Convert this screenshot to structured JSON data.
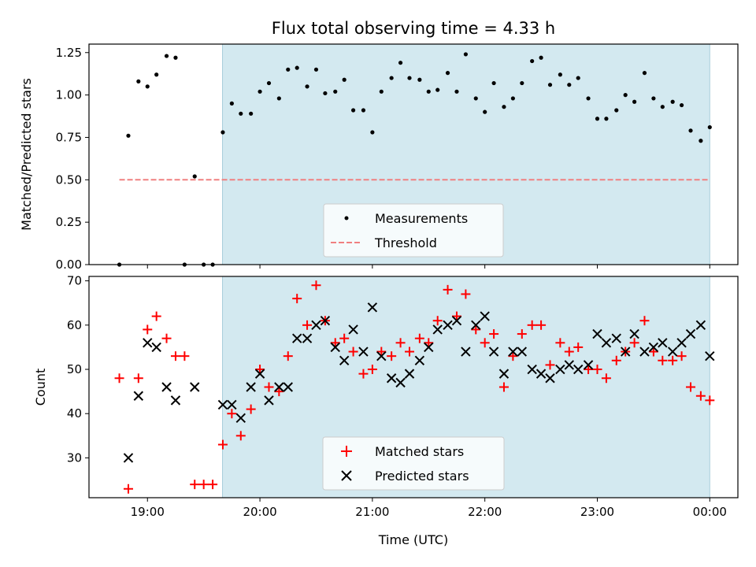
{
  "chart_data": {
    "type": "scatter",
    "title": "Flux total observing time = 4.33 h",
    "xlabel": "Time (UTC)",
    "x_ticks": [
      19.0,
      20.0,
      21.0,
      22.0,
      23.0,
      24.0
    ],
    "x_tick_labels": [
      "19:00",
      "20:00",
      "21:00",
      "22:00",
      "23:00",
      "00:00"
    ],
    "xlim": [
      18.48,
      24.25
    ],
    "observing_window": [
      19.667,
      24.0
    ],
    "colors": {
      "window": "#d3e9f0",
      "measurement": "#000000",
      "threshold": "#f08080",
      "matched": "#ff0000",
      "predicted": "#000000"
    },
    "panels": [
      {
        "ylabel": "Matched/Predicted stars",
        "ylim": [
          0,
          1.3
        ],
        "y_ticks": [
          0,
          0.25,
          0.5,
          0.75,
          1.0,
          1.25
        ],
        "y_tick_labels": [
          "0.00",
          "0.25",
          "0.50",
          "0.75",
          "1.00",
          "1.25"
        ],
        "legend_position": "lower center",
        "threshold": {
          "name": "Threshold",
          "value": 0.5,
          "x_range": [
            18.75,
            24.0
          ]
        },
        "series": [
          {
            "name": "Measurements",
            "marker": "dot",
            "x": [
              18.75,
              18.83,
              18.92,
              19.0,
              19.08,
              19.17,
              19.25,
              19.33,
              19.42,
              19.5,
              19.58,
              19.67,
              19.75,
              19.83,
              19.92,
              20.0,
              20.08,
              20.17,
              20.25,
              20.33,
              20.42,
              20.5,
              20.58,
              20.67,
              20.75,
              20.83,
              20.92,
              21.0,
              21.08,
              21.17,
              21.25,
              21.33,
              21.42,
              21.5,
              21.58,
              21.67,
              21.75,
              21.83,
              21.92,
              22.0,
              22.08,
              22.17,
              22.25,
              22.33,
              22.42,
              22.5,
              22.58,
              22.67,
              22.75,
              22.83,
              22.92,
              23.0,
              23.08,
              23.17,
              23.25,
              23.33,
              23.42,
              23.5,
              23.58,
              23.67,
              23.75,
              23.83,
              23.92,
              24.0
            ],
            "y": [
              0.0,
              0.76,
              1.08,
              1.05,
              1.12,
              1.23,
              1.22,
              0.0,
              0.52,
              0.0,
              0.0,
              0.78,
              0.95,
              0.89,
              0.89,
              1.02,
              1.07,
              0.98,
              1.15,
              1.16,
              1.05,
              1.15,
              1.01,
              1.02,
              1.09,
              0.91,
              0.91,
              0.78,
              1.02,
              1.1,
              1.19,
              1.1,
              1.09,
              1.02,
              1.03,
              1.13,
              1.02,
              1.24,
              0.98,
              0.9,
              1.07,
              0.93,
              0.98,
              1.07,
              1.2,
              1.22,
              1.06,
              1.12,
              1.06,
              1.1,
              0.98,
              0.86,
              0.86,
              0.91,
              1.0,
              0.96,
              1.13,
              0.98,
              0.93,
              0.96,
              0.94,
              0.79,
              0.73,
              0.81
            ]
          }
        ]
      },
      {
        "ylabel": "Count",
        "ylim": [
          21,
          71
        ],
        "y_ticks": [
          30,
          40,
          50,
          60,
          70
        ],
        "y_tick_labels": [
          "30",
          "40",
          "50",
          "60",
          "70"
        ],
        "legend_position": "lower center",
        "series": [
          {
            "name": "Matched stars",
            "marker": "plus",
            "x": [
              18.75,
              18.83,
              18.92,
              19.0,
              19.08,
              19.17,
              19.25,
              19.33,
              19.42,
              19.5,
              19.58,
              19.67,
              19.75,
              19.83,
              19.92,
              20.0,
              20.08,
              20.17,
              20.25,
              20.33,
              20.42,
              20.5,
              20.58,
              20.67,
              20.75,
              20.83,
              20.92,
              21.0,
              21.08,
              21.17,
              21.25,
              21.33,
              21.42,
              21.5,
              21.58,
              21.67,
              21.75,
              21.83,
              21.92,
              22.0,
              22.08,
              22.17,
              22.25,
              22.33,
              22.42,
              22.5,
              22.58,
              22.67,
              22.75,
              22.83,
              22.92,
              23.0,
              23.08,
              23.17,
              23.25,
              23.33,
              23.42,
              23.5,
              23.58,
              23.67,
              23.75,
              23.83,
              23.92,
              24.0
            ],
            "y": [
              48,
              23,
              48,
              59,
              62,
              57,
              53,
              53,
              24,
              24,
              24,
              33,
              40,
              35,
              41,
              50,
              46,
              45,
              53,
              66,
              60,
              69,
              61,
              56,
              57,
              54,
              49,
              50,
              54,
              53,
              56,
              54,
              57,
              56,
              61,
              68,
              62,
              67,
              59,
              56,
              58,
              46,
              53,
              58,
              60,
              60,
              51,
              56,
              54,
              55,
              50,
              50,
              48,
              52,
              54,
              56,
              61,
              54,
              52,
              52,
              53,
              46,
              44,
              43
            ]
          },
          {
            "name": "Predicted stars",
            "marker": "x",
            "x": [
              18.83,
              18.92,
              19.0,
              19.08,
              19.17,
              19.25,
              19.42,
              19.67,
              19.75,
              19.83,
              19.92,
              20.0,
              20.08,
              20.17,
              20.25,
              20.33,
              20.42,
              20.5,
              20.58,
              20.67,
              20.75,
              20.83,
              20.92,
              21.0,
              21.08,
              21.17,
              21.25,
              21.33,
              21.42,
              21.5,
              21.58,
              21.67,
              21.75,
              21.83,
              21.92,
              22.0,
              22.08,
              22.17,
              22.25,
              22.33,
              22.42,
              22.5,
              22.58,
              22.67,
              22.75,
              22.83,
              22.92,
              23.0,
              23.08,
              23.17,
              23.25,
              23.33,
              23.42,
              23.5,
              23.58,
              23.67,
              23.75,
              23.83,
              23.92,
              24.0
            ],
            "y": [
              30,
              44,
              56,
              55,
              46,
              43,
              46,
              42,
              42,
              39,
              46,
              49,
              43,
              46,
              46,
              57,
              57,
              60,
              61,
              55,
              52,
              59,
              54,
              64,
              53,
              48,
              47,
              49,
              52,
              55,
              59,
              60,
              61,
              54,
              60,
              62,
              54,
              49,
              54,
              54,
              50,
              49,
              48,
              50,
              51,
              50,
              51,
              58,
              56,
              57,
              54,
              58,
              54,
              55,
              56,
              54,
              56,
              58,
              60,
              53
            ]
          }
        ]
      }
    ]
  }
}
